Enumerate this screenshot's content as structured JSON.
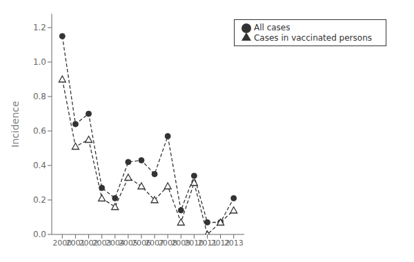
{
  "chart_data": {
    "type": "line",
    "y_label": "Incidence",
    "x": [
      2000,
      2001,
      2002,
      2003,
      2004,
      2005,
      2006,
      2007,
      2008,
      2009,
      2010,
      2011,
      2012,
      2013
    ],
    "series": [
      {
        "name": "All cases",
        "color": "#333333",
        "marker": "circle",
        "line_style": "dashed",
        "values": [
          1.15,
          0.64,
          0.7,
          0.27,
          0.21,
          0.42,
          0.43,
          0.35,
          0.57,
          0.14,
          0.34,
          0.07,
          0.07,
          0.21
        ]
      },
      {
        "name": "Cases in vaccinated persons",
        "color": "#333333",
        "marker": "triangle",
        "line_style": "dashed",
        "values": [
          0.9,
          0.51,
          0.55,
          0.21,
          0.16,
          0.33,
          0.28,
          0.2,
          0.28,
          0.07,
          0.3,
          0.0,
          0.07,
          0.14
        ]
      }
    ],
    "xlim": [
      1999.2,
      2013.8
    ],
    "xticks": [
      2000,
      2001,
      2002,
      2003,
      2004,
      2005,
      2006,
      2007,
      2008,
      2009,
      2010,
      2011,
      2012,
      2013
    ],
    "ylim": [
      0.0,
      1.28
    ],
    "yticks": [
      {
        "value": 0.0,
        "label": "0.0"
      },
      0.2,
      0.4,
      0.6,
      0.8,
      {
        "value": 1.0,
        "label": "1.0"
      },
      1.2
    ],
    "grid": false,
    "legend": "upper right"
  }
}
